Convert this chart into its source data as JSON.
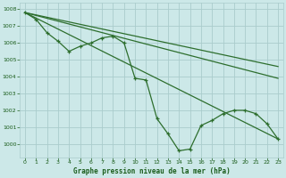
{
  "title": "Graphe pression niveau de la mer (hPa)",
  "bg_color": "#cce8e8",
  "grid_color": "#aacccc",
  "line_color": "#2d6e2d",
  "text_color": "#1a5c1a",
  "xlim": [
    -0.5,
    23.5
  ],
  "ylim": [
    999.2,
    1008.4
  ],
  "yticks": [
    1000,
    1001,
    1002,
    1003,
    1004,
    1005,
    1006,
    1007,
    1008
  ],
  "xticks": [
    0,
    1,
    2,
    3,
    4,
    5,
    6,
    7,
    8,
    9,
    10,
    11,
    12,
    13,
    14,
    15,
    16,
    17,
    18,
    19,
    20,
    21,
    22,
    23
  ],
  "series_x": [
    0,
    1,
    2,
    3,
    4,
    5,
    6,
    7,
    8,
    9,
    10,
    11,
    12,
    13,
    14,
    15,
    16,
    17,
    18,
    19,
    20,
    21,
    22,
    23
  ],
  "series_y": [
    1007.8,
    1007.4,
    1006.6,
    1006.1,
    1005.5,
    1005.8,
    1006.0,
    1006.3,
    1006.4,
    1006.0,
    1003.9,
    1003.8,
    1001.5,
    1000.6,
    999.6,
    999.7,
    1001.1,
    1001.4,
    1001.8,
    1002.0,
    1002.0,
    1001.8,
    1001.2,
    1000.3
  ],
  "trend1": {
    "x": [
      0,
      23
    ],
    "y": [
      1007.8,
      1000.3
    ]
  },
  "trend2": {
    "x": [
      0,
      23
    ],
    "y": [
      1007.8,
      1003.9
    ]
  },
  "trend3": {
    "x": [
      0,
      23
    ],
    "y": [
      1007.8,
      1004.6
    ]
  }
}
